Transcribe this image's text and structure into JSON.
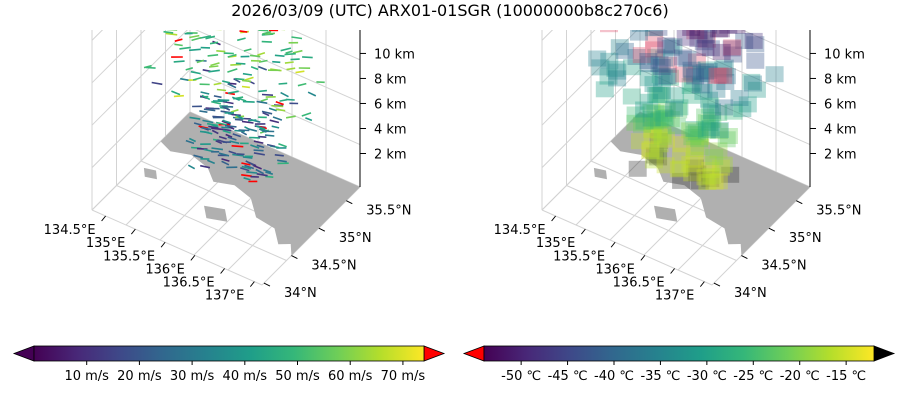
{
  "title": "2026/03/09 (UTC) ARX01-01SGR (10000000b8c270c6)",
  "colors": {
    "land": "#b0b0b0",
    "axis": "#000000",
    "grid": "#d3d3d3",
    "over_wind": "#ff0000",
    "over_temp": "#000000",
    "under_temp": "#ff0000",
    "viridis": [
      "#440154",
      "#482878",
      "#3e4989",
      "#31688e",
      "#26828e",
      "#1f9e89",
      "#35b779",
      "#6ece58",
      "#b5de2b",
      "#fde725"
    ]
  },
  "chart_data": [
    {
      "type": "quiver3d",
      "name": "wind",
      "x_ticks": [
        "134.5°E",
        "135°E",
        "135.5°E",
        "136°E",
        "136.5°E",
        "137°E"
      ],
      "y_ticks": [
        "34°N",
        "34.5°N",
        "35°N",
        "35.5°N"
      ],
      "z_ticks": [
        "2 km",
        "4 km",
        "6 km",
        "8 km",
        "10 km"
      ],
      "xlim": [
        134.3,
        137.0
      ],
      "ylim": [
        33.9,
        35.9
      ],
      "zlim": [
        0,
        11.5
      ],
      "colorbar": {
        "ticks": [
          "10 m/s",
          "20 m/s",
          "30 m/s",
          "40 m/s",
          "50 m/s",
          "60 m/s",
          "70 m/s"
        ],
        "range": [
          0,
          74
        ],
        "extend_left": "#440154",
        "extend_right": "#ff0000"
      }
    },
    {
      "type": "voxel3d",
      "name": "temperature",
      "x_ticks": [
        "134.5°E",
        "135°E",
        "135.5°E",
        "136°E",
        "136.5°E",
        "137°E"
      ],
      "y_ticks": [
        "34°N",
        "34.5°N",
        "35°N",
        "35.5°N"
      ],
      "z_ticks": [
        "2 km",
        "4 km",
        "6 km",
        "8 km",
        "10 km"
      ],
      "xlim": [
        134.3,
        137.0
      ],
      "ylim": [
        33.9,
        35.9
      ],
      "zlim": [
        0,
        11.5
      ],
      "colorbar": {
        "ticks": [
          "-50 ℃",
          "-45 ℃",
          "-40 ℃",
          "-35 ℃",
          "-30 ℃",
          "-25 ℃",
          "-20 ℃",
          "-15 ℃"
        ],
        "range": [
          -54,
          -12
        ],
        "extend_left": "#ff0000",
        "extend_right": "#000000"
      }
    }
  ]
}
